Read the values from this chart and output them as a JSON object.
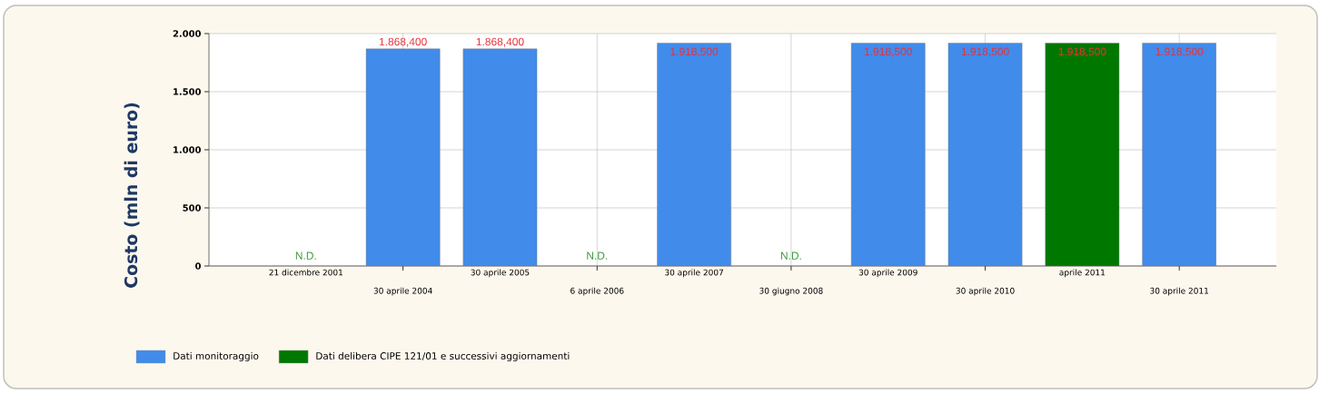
{
  "chart_data": {
    "type": "bar",
    "ylabel": "Costo (mln di euro)",
    "categories": [
      "21 dicembre 2001",
      "30 aprile 2004",
      "30 aprile 2005",
      "6 aprile 2006",
      "30 aprile 2007",
      "30 giugno 2008",
      "30 aprile 2009",
      "30 aprile 2010",
      "aprile 2011",
      "30 aprile 2011"
    ],
    "series": [
      {
        "name": "Dati monitoraggio",
        "color": "#418bea",
        "values": [
          null,
          1868.4,
          1868.4,
          null,
          1918.5,
          null,
          1918.5,
          1918.5,
          null,
          1918.5
        ],
        "value_labels": [
          "N.D.",
          "1.868,400",
          "1.868,400",
          "N.D.",
          "1.918,500",
          "N.D.",
          "1.918,500",
          "1.918,500",
          null,
          "1.918,500"
        ]
      },
      {
        "name": "Dati delibera CIPE 121/01 e successivi aggiornamenti",
        "color": "#007800",
        "values": [
          null,
          null,
          null,
          null,
          null,
          null,
          null,
          null,
          1918.5,
          null
        ],
        "value_labels": [
          null,
          null,
          null,
          null,
          null,
          null,
          null,
          null,
          "1.918,500",
          null
        ]
      }
    ],
    "ylim": [
      0,
      2000
    ],
    "yticks": [
      0,
      500,
      {
        "value": 1000,
        "label": "1.000"
      },
      {
        "value": 1500,
        "label": "1.500"
      },
      {
        "value": 2000,
        "label": "2.000"
      }
    ],
    "grid": true,
    "legend": "bottom left"
  }
}
